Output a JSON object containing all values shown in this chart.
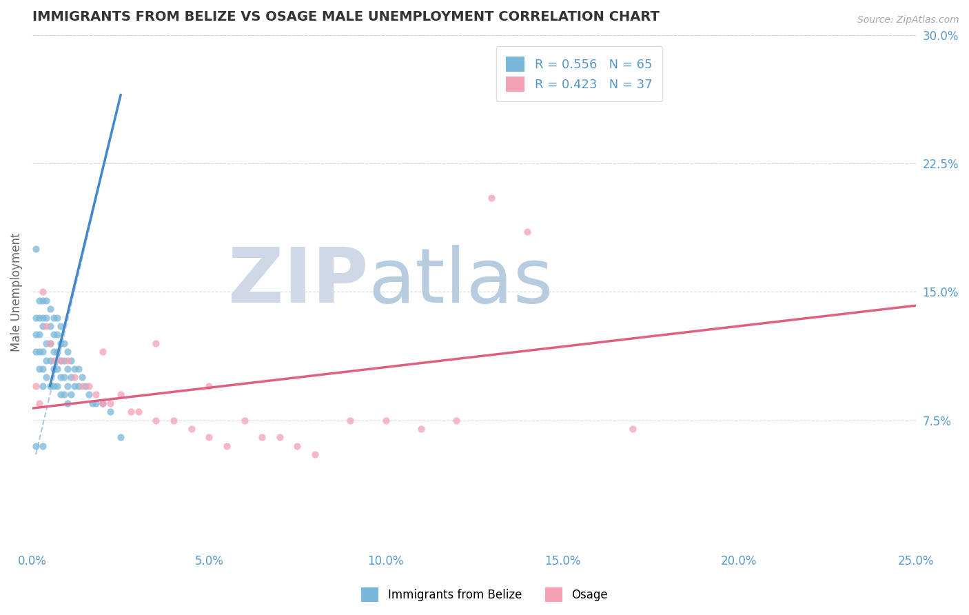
{
  "title": "IMMIGRANTS FROM BELIZE VS OSAGE MALE UNEMPLOYMENT CORRELATION CHART",
  "source": "Source: ZipAtlas.com",
  "xlabel_legend1": "Immigrants from Belize",
  "xlabel_legend2": "Osage",
  "ylabel": "Male Unemployment",
  "xlim": [
    0.0,
    0.25
  ],
  "ylim": [
    0.0,
    0.3
  ],
  "xticks": [
    0.0,
    0.05,
    0.1,
    0.15,
    0.2,
    0.25
  ],
  "xticklabels": [
    "0.0%",
    "5.0%",
    "10.0%",
    "15.0%",
    "20.0%",
    "25.0%"
  ],
  "yticks": [
    0.075,
    0.15,
    0.225,
    0.3
  ],
  "yticklabels": [
    "7.5%",
    "15.0%",
    "22.5%",
    "30.0%"
  ],
  "r1": 0.556,
  "n1": 65,
  "r2": 0.423,
  "n2": 37,
  "color1": "#7ab8d9",
  "color2": "#f4a0b5",
  "trendline1_color": "#4488cc",
  "trendline2_color": "#e06080",
  "background_color": "#ffffff",
  "grid_color": "#cccccc",
  "title_color": "#333333",
  "axis_label_color": "#666666",
  "tick_color": "#5599cc",
  "watermark_zip_color": "#d0d8e8",
  "watermark_atlas_color": "#b8cce0",
  "blue_scatter": [
    [
      0.001,
      0.175
    ],
    [
      0.001,
      0.135
    ],
    [
      0.001,
      0.125
    ],
    [
      0.001,
      0.115
    ],
    [
      0.002,
      0.145
    ],
    [
      0.002,
      0.135
    ],
    [
      0.002,
      0.125
    ],
    [
      0.002,
      0.115
    ],
    [
      0.002,
      0.105
    ],
    [
      0.003,
      0.145
    ],
    [
      0.003,
      0.135
    ],
    [
      0.003,
      0.13
    ],
    [
      0.003,
      0.115
    ],
    [
      0.003,
      0.105
    ],
    [
      0.003,
      0.095
    ],
    [
      0.004,
      0.145
    ],
    [
      0.004,
      0.135
    ],
    [
      0.004,
      0.12
    ],
    [
      0.004,
      0.11
    ],
    [
      0.004,
      0.1
    ],
    [
      0.005,
      0.14
    ],
    [
      0.005,
      0.13
    ],
    [
      0.005,
      0.12
    ],
    [
      0.005,
      0.11
    ],
    [
      0.005,
      0.095
    ],
    [
      0.006,
      0.135
    ],
    [
      0.006,
      0.125
    ],
    [
      0.006,
      0.115
    ],
    [
      0.006,
      0.105
    ],
    [
      0.006,
      0.095
    ],
    [
      0.007,
      0.135
    ],
    [
      0.007,
      0.125
    ],
    [
      0.007,
      0.115
    ],
    [
      0.007,
      0.105
    ],
    [
      0.007,
      0.095
    ],
    [
      0.008,
      0.13
    ],
    [
      0.008,
      0.12
    ],
    [
      0.008,
      0.11
    ],
    [
      0.008,
      0.1
    ],
    [
      0.008,
      0.09
    ],
    [
      0.009,
      0.12
    ],
    [
      0.009,
      0.11
    ],
    [
      0.009,
      0.1
    ],
    [
      0.009,
      0.09
    ],
    [
      0.01,
      0.115
    ],
    [
      0.01,
      0.105
    ],
    [
      0.01,
      0.095
    ],
    [
      0.01,
      0.085
    ],
    [
      0.011,
      0.11
    ],
    [
      0.011,
      0.1
    ],
    [
      0.011,
      0.09
    ],
    [
      0.012,
      0.105
    ],
    [
      0.012,
      0.095
    ],
    [
      0.013,
      0.105
    ],
    [
      0.013,
      0.095
    ],
    [
      0.014,
      0.1
    ],
    [
      0.015,
      0.095
    ],
    [
      0.016,
      0.09
    ],
    [
      0.017,
      0.085
    ],
    [
      0.018,
      0.085
    ],
    [
      0.02,
      0.085
    ],
    [
      0.022,
      0.08
    ],
    [
      0.025,
      0.065
    ],
    [
      0.001,
      0.06
    ],
    [
      0.003,
      0.06
    ]
  ],
  "pink_scatter": [
    [
      0.001,
      0.095
    ],
    [
      0.002,
      0.085
    ],
    [
      0.003,
      0.15
    ],
    [
      0.004,
      0.13
    ],
    [
      0.005,
      0.12
    ],
    [
      0.006,
      0.11
    ],
    [
      0.008,
      0.11
    ],
    [
      0.01,
      0.11
    ],
    [
      0.012,
      0.1
    ],
    [
      0.014,
      0.095
    ],
    [
      0.016,
      0.095
    ],
    [
      0.018,
      0.09
    ],
    [
      0.02,
      0.085
    ],
    [
      0.022,
      0.085
    ],
    [
      0.025,
      0.09
    ],
    [
      0.028,
      0.08
    ],
    [
      0.03,
      0.08
    ],
    [
      0.035,
      0.075
    ],
    [
      0.04,
      0.075
    ],
    [
      0.045,
      0.07
    ],
    [
      0.05,
      0.065
    ],
    [
      0.055,
      0.06
    ],
    [
      0.06,
      0.075
    ],
    [
      0.065,
      0.065
    ],
    [
      0.07,
      0.065
    ],
    [
      0.075,
      0.06
    ],
    [
      0.08,
      0.055
    ],
    [
      0.09,
      0.075
    ],
    [
      0.1,
      0.075
    ],
    [
      0.11,
      0.07
    ],
    [
      0.12,
      0.075
    ],
    [
      0.13,
      0.205
    ],
    [
      0.14,
      0.185
    ],
    [
      0.17,
      0.07
    ],
    [
      0.02,
      0.115
    ],
    [
      0.035,
      0.12
    ],
    [
      0.05,
      0.095
    ]
  ],
  "blue_trendline_solid": [
    [
      0.005,
      0.095
    ],
    [
      0.025,
      0.265
    ]
  ],
  "blue_trendline_dashed": [
    [
      0.001,
      0.055
    ],
    [
      0.025,
      0.265
    ]
  ],
  "pink_trendline": [
    [
      0.0,
      0.082
    ],
    [
      0.25,
      0.142
    ]
  ]
}
